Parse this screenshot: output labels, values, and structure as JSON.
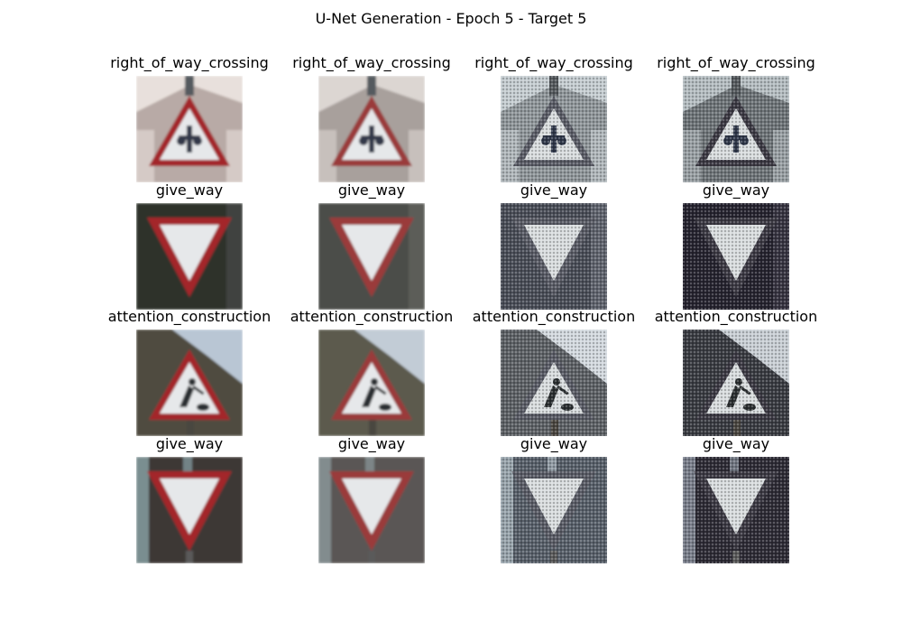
{
  "figure": {
    "title": "U-Net Generation - Epoch 5 - Target 5"
  },
  "rows": [
    {
      "panels": [
        {
          "label": "right_of_way_crossing",
          "sign": "warning-triangle",
          "symbol": "crossing",
          "variant": "original",
          "bg": "#b8aaa6",
          "accent": "#e8e0dc"
        },
        {
          "label": "right_of_way_crossing",
          "sign": "warning-triangle",
          "symbol": "crossing",
          "variant": "reconstruction",
          "bg": "#a8a09c",
          "accent": "#dcd6d2"
        },
        {
          "label": "right_of_way_crossing",
          "sign": "warning-triangle",
          "symbol": "crossing",
          "variant": "generated",
          "bg": "#8f969a",
          "accent": "#c4ccd0"
        },
        {
          "label": "right_of_way_crossing",
          "sign": "warning-triangle",
          "symbol": "crossing",
          "variant": "generated-dark",
          "bg": "#6e7478",
          "accent": "#b4bcc0"
        }
      ]
    },
    {
      "panels": [
        {
          "label": "give_way",
          "sign": "yield-triangle",
          "symbol": "none",
          "variant": "original",
          "bg": "#2e302c",
          "accent": "#4a4c48"
        },
        {
          "label": "give_way",
          "sign": "yield-triangle",
          "symbol": "none",
          "variant": "reconstruction",
          "bg": "#4c4e4a",
          "accent": "#62645f"
        },
        {
          "label": "give_way",
          "sign": "yield-triangle",
          "symbol": "none",
          "variant": "generated",
          "bg": "#4a4e58",
          "accent": "#6a6e78"
        },
        {
          "label": "give_way",
          "sign": "yield-triangle",
          "symbol": "none",
          "variant": "generated-dark",
          "bg": "#262430",
          "accent": "#3e3c48"
        }
      ]
    },
    {
      "panels": [
        {
          "label": "attention_construction",
          "sign": "warning-triangle",
          "symbol": "worker",
          "variant": "original",
          "bg": "#4f4c40",
          "accent": "#b9c6d4"
        },
        {
          "label": "attention_construction",
          "sign": "warning-triangle",
          "symbol": "worker",
          "variant": "reconstruction",
          "bg": "#5c5a4e",
          "accent": "#c2ccd6"
        },
        {
          "label": "attention_construction",
          "sign": "warning-triangle",
          "symbol": "worker",
          "variant": "generated",
          "bg": "#5e6266",
          "accent": "#d2d8de"
        },
        {
          "label": "attention_construction",
          "sign": "warning-triangle",
          "symbol": "worker",
          "variant": "generated-dark",
          "bg": "#3a3c42",
          "accent": "#c8ced4"
        }
      ]
    },
    {
      "panels": [
        {
          "label": "give_way",
          "sign": "yield-triangle",
          "symbol": "none",
          "variant": "original",
          "bg": "#3e3836",
          "accent": "#8aa4a8"
        },
        {
          "label": "give_way",
          "sign": "yield-triangle",
          "symbol": "none",
          "variant": "reconstruction",
          "bg": "#5a5654",
          "accent": "#8c9a9c"
        },
        {
          "label": "give_way",
          "sign": "yield-triangle",
          "symbol": "none",
          "variant": "generated",
          "bg": "#58606a",
          "accent": "#a8b4bc"
        },
        {
          "label": "give_way",
          "sign": "yield-triangle",
          "symbol": "none",
          "variant": "generated-dark",
          "bg": "#2e2c36",
          "accent": "#8c94a0"
        }
      ]
    }
  ]
}
